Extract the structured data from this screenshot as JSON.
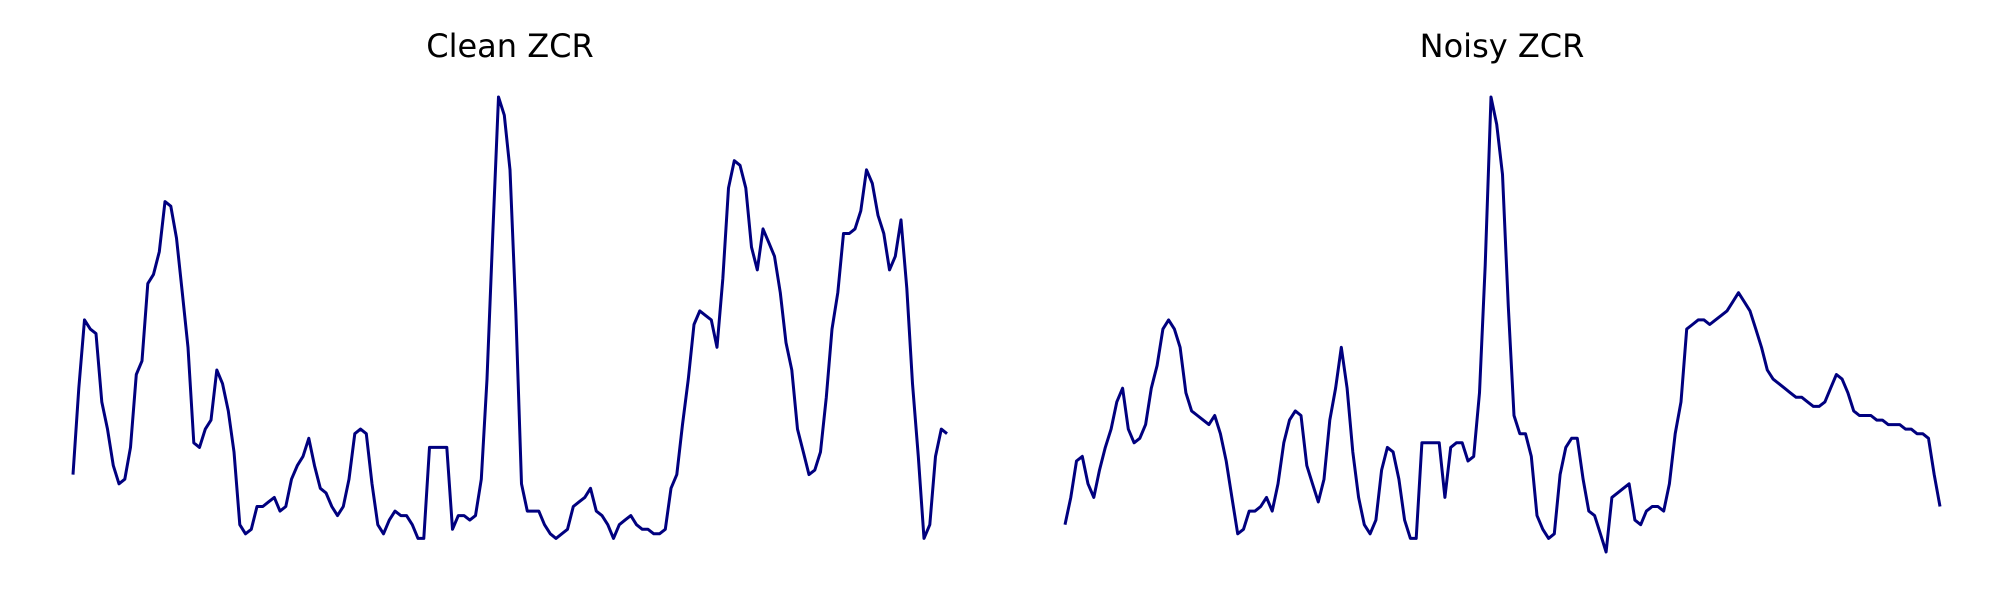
{
  "chart_data": [
    {
      "type": "line",
      "title": "Clean ZCR",
      "xlabel": "",
      "ylabel": "",
      "axes_visible": false,
      "grid": false,
      "legend": "none",
      "ylim": [
        0,
        1
      ],
      "color": "#00007f",
      "values": [
        0.17,
        0.36,
        0.51,
        0.49,
        0.48,
        0.33,
        0.27,
        0.19,
        0.15,
        0.16,
        0.23,
        0.39,
        0.42,
        0.59,
        0.61,
        0.66,
        0.77,
        0.76,
        0.69,
        0.57,
        0.45,
        0.24,
        0.23,
        0.27,
        0.29,
        0.4,
        0.37,
        0.31,
        0.22,
        0.06,
        0.04,
        0.05,
        0.1,
        0.1,
        0.11,
        0.12,
        0.09,
        0.1,
        0.16,
        0.19,
        0.21,
        0.25,
        0.19,
        0.14,
        0.13,
        0.1,
        0.08,
        0.1,
        0.16,
        0.26,
        0.27,
        0.26,
        0.15,
        0.06,
        0.04,
        0.07,
        0.09,
        0.08,
        0.08,
        0.06,
        0.03,
        0.03,
        0.23,
        0.23,
        0.23,
        0.23,
        0.05,
        0.08,
        0.08,
        0.07,
        0.08,
        0.16,
        0.38,
        0.7,
        1.0,
        0.96,
        0.84,
        0.53,
        0.15,
        0.09,
        0.09,
        0.09,
        0.06,
        0.04,
        0.03,
        0.04,
        0.05,
        0.1,
        0.11,
        0.12,
        0.14,
        0.09,
        0.08,
        0.06,
        0.03,
        0.06,
        0.07,
        0.08,
        0.06,
        0.05,
        0.05,
        0.04,
        0.04,
        0.05,
        0.14,
        0.17,
        0.28,
        0.38,
        0.5,
        0.53,
        0.52,
        0.51,
        0.45,
        0.6,
        0.8,
        0.86,
        0.85,
        0.8,
        0.67,
        0.62,
        0.71,
        0.68,
        0.65,
        0.57,
        0.46,
        0.4,
        0.27,
        0.22,
        0.17,
        0.18,
        0.22,
        0.34,
        0.49,
        0.57,
        0.7,
        0.7,
        0.71,
        0.75,
        0.84,
        0.81,
        0.74,
        0.7,
        0.62,
        0.65,
        0.73,
        0.58,
        0.37,
        0.21,
        0.03,
        0.06,
        0.21,
        0.27,
        0.26
      ]
    },
    {
      "type": "line",
      "title": "Noisy ZCR",
      "xlabel": "",
      "ylabel": "",
      "axes_visible": false,
      "grid": false,
      "legend": "none",
      "ylim": [
        0,
        1
      ],
      "color": "#00007f",
      "values": [
        0.06,
        0.12,
        0.2,
        0.21,
        0.15,
        0.12,
        0.18,
        0.23,
        0.27,
        0.33,
        0.36,
        0.27,
        0.24,
        0.25,
        0.28,
        0.36,
        0.41,
        0.49,
        0.51,
        0.49,
        0.45,
        0.35,
        0.31,
        0.3,
        0.29,
        0.28,
        0.3,
        0.26,
        0.2,
        0.12,
        0.04,
        0.05,
        0.09,
        0.09,
        0.1,
        0.12,
        0.09,
        0.15,
        0.24,
        0.29,
        0.31,
        0.3,
        0.19,
        0.15,
        0.11,
        0.16,
        0.29,
        0.36,
        0.45,
        0.36,
        0.22,
        0.12,
        0.06,
        0.04,
        0.07,
        0.18,
        0.23,
        0.22,
        0.16,
        0.07,
        0.03,
        0.03,
        0.24,
        0.24,
        0.24,
        0.24,
        0.12,
        0.23,
        0.24,
        0.24,
        0.2,
        0.21,
        0.35,
        0.63,
        1.0,
        0.94,
        0.83,
        0.54,
        0.3,
        0.26,
        0.26,
        0.21,
        0.08,
        0.05,
        0.03,
        0.04,
        0.17,
        0.23,
        0.25,
        0.25,
        0.16,
        0.09,
        0.08,
        0.04,
        0.0,
        0.12,
        0.13,
        0.14,
        0.15,
        0.07,
        0.06,
        0.09,
        0.1,
        0.1,
        0.09,
        0.15,
        0.26,
        0.33,
        0.49,
        0.5,
        0.51,
        0.51,
        0.5,
        0.51,
        0.52,
        0.53,
        0.55,
        0.57,
        0.55,
        0.53,
        0.49,
        0.45,
        0.4,
        0.38,
        0.37,
        0.36,
        0.35,
        0.34,
        0.34,
        0.33,
        0.32,
        0.32,
        0.33,
        0.36,
        0.39,
        0.38,
        0.35,
        0.31,
        0.3,
        0.3,
        0.3,
        0.29,
        0.29,
        0.28,
        0.28,
        0.28,
        0.27,
        0.27,
        0.26,
        0.26,
        0.25,
        0.17,
        0.1
      ]
    }
  ]
}
